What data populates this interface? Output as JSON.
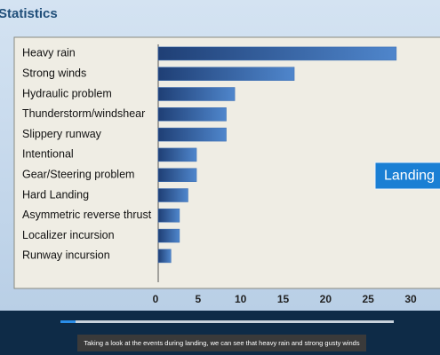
{
  "header": {
    "title": "Statistics"
  },
  "chart_data": {
    "type": "barh",
    "categories": [
      "Heavy rain",
      "Strong winds",
      "Hydraulic problem",
      "Thunderstorm/windshear",
      "Slippery runway",
      "Intentional",
      "Gear/Steering problem",
      "Hard Landing",
      "Asymmetric reverse thrust",
      "Localizer incursion",
      "Runway incursion"
    ],
    "values": [
      28,
      16,
      9,
      8,
      8,
      4.5,
      4.5,
      3.5,
      2.5,
      2.5,
      1.5
    ],
    "color": "#3a6db3",
    "xlim": [
      0,
      30
    ],
    "xticks": [
      0,
      5,
      10,
      15,
      20,
      25,
      30
    ],
    "grid": false
  },
  "button": {
    "label": "Landing"
  },
  "caption": {
    "text": "Taking a look at the events during landing, we can see that heavy rain and strong gusty winds"
  }
}
